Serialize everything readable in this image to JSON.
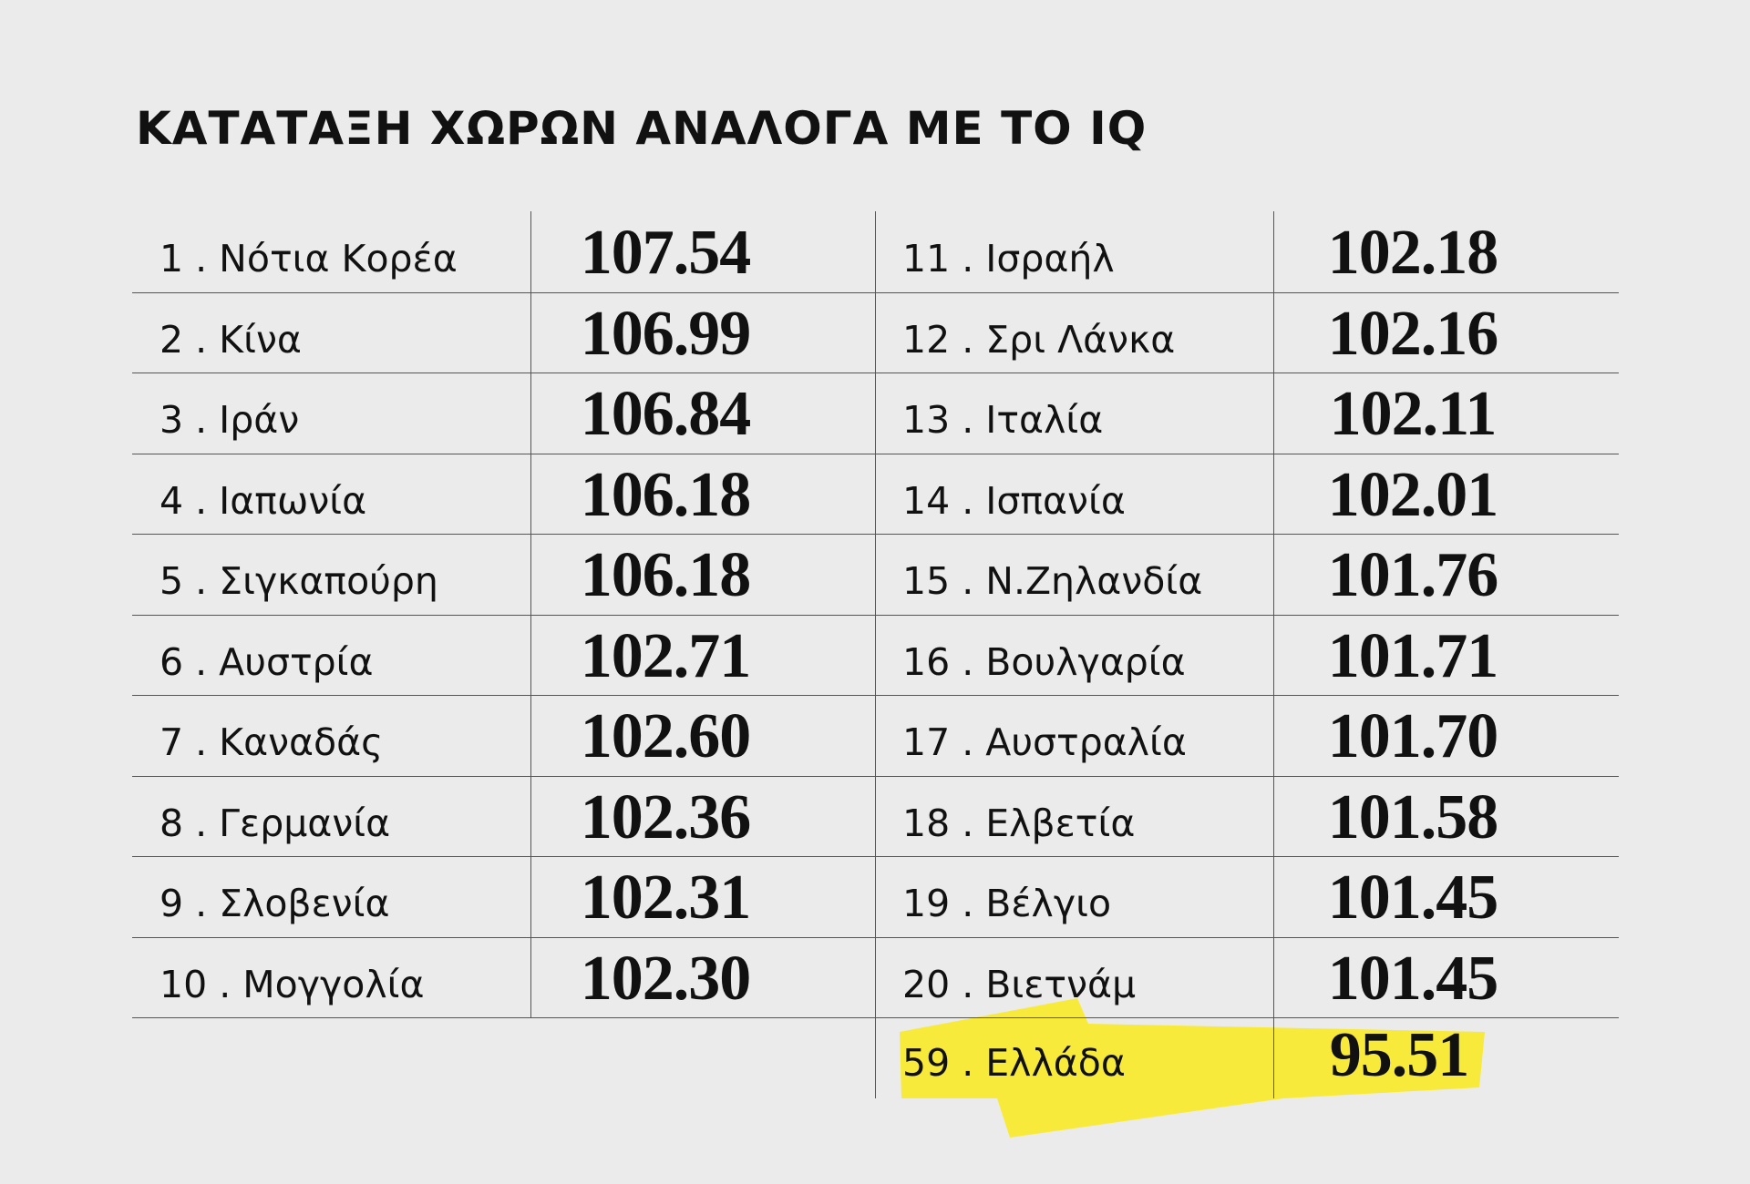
{
  "title": "ΚΑΤΑΤΑΞΗ ΧΩΡΩΝ ΑΝΑΛΟΓΑ ΜΕ ΤΟ IQ",
  "left_rows": [
    {
      "label": "1 . Νότια Κορέα",
      "value": "107.54"
    },
    {
      "label": "2 . Κίνα",
      "value": "106.99"
    },
    {
      "label": "3 . Ιράν",
      "value": "106.84"
    },
    {
      "label": "4 . Ιαπωνία",
      "value": "106.18"
    },
    {
      "label": "5 . Σιγκαπούρη",
      "value": "106.18"
    },
    {
      "label": "6 . Αυστρία",
      "value": "102.71"
    },
    {
      "label": "7 . Καναδάς",
      "value": "102.60"
    },
    {
      "label": "8 . Γερμανία",
      "value": "102.36"
    },
    {
      "label": "9 . Σλοβενία",
      "value": "102.31"
    },
    {
      "label": "10 . Μογγολία",
      "value": "102.30"
    }
  ],
  "right_rows": [
    {
      "label": "11 . Ισραήλ",
      "value": "102.18"
    },
    {
      "label": "12 . Σρι Λάνκα",
      "value": "102.16"
    },
    {
      "label": "13 . Ιταλία",
      "value": "102.11"
    },
    {
      "label": "14 . Ισπανία",
      "value": "102.01"
    },
    {
      "label": "15 . Ν.Ζηλανδία",
      "value": "101.76"
    },
    {
      "label": "16 . Βουλγαρία",
      "value": "101.71"
    },
    {
      "label": "17 . Αυστραλία",
      "value": "101.70"
    },
    {
      "label": "18 . Ελβετία",
      "value": "101.58"
    },
    {
      "label": "19 . Βέλγιο",
      "value": "101.45"
    },
    {
      "label": "20 . Βιετνάμ",
      "value": "101.45"
    }
  ],
  "highlight_row": {
    "label": "59 . Ελλάδα",
    "value": "95.51"
  }
}
